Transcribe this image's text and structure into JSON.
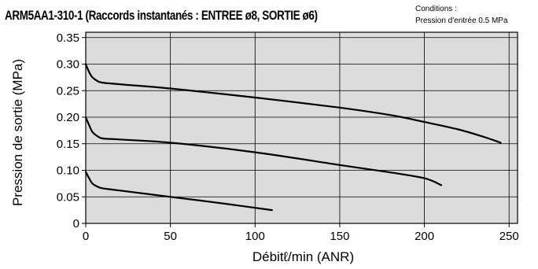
{
  "header": {
    "title": "ARM5AA1-310-1 (Raccords instantanés : ENTREE ø8, SORTIE ø6)",
    "conditions_label": "Conditions :",
    "conditions_value": "Pression d'entrée  0.5 MPa"
  },
  "chart_data": {
    "type": "line",
    "title": "ARM5AA1-310-1 (Raccords instantanés : ENTREE ø8, SORTIE ø6)",
    "xlabel": "Débitℓ/min (ANR)",
    "ylabel": "Pression de sortie (MPa)",
    "xlim": [
      0,
      255
    ],
    "ylim": [
      0,
      0.36
    ],
    "xticks": [
      0,
      50,
      100,
      150,
      200,
      250
    ],
    "yticks": [
      0,
      0.05,
      0.1,
      0.15,
      0.2,
      0.25,
      0.3,
      0.35
    ],
    "ytick_labels": [
      "0",
      "0.05",
      "0.10",
      "0.15",
      "0.20",
      "0.25",
      "0.30",
      "0.35"
    ],
    "grid": true,
    "background": "#dcdcdc",
    "line_color": "#000000",
    "series": [
      {
        "x": [
          0,
          2,
          4,
          7,
          10,
          20,
          50,
          100,
          150,
          180,
          200,
          220,
          235,
          245
        ],
        "y": [
          0.3,
          0.285,
          0.275,
          0.268,
          0.265,
          0.262,
          0.254,
          0.237,
          0.218,
          0.204,
          0.191,
          0.177,
          0.163,
          0.152
        ]
      },
      {
        "x": [
          0,
          2,
          4,
          7,
          10,
          20,
          50,
          100,
          150,
          180,
          200,
          210
        ],
        "y": [
          0.2,
          0.185,
          0.172,
          0.164,
          0.16,
          0.158,
          0.152,
          0.134,
          0.11,
          0.096,
          0.085,
          0.072
        ]
      },
      {
        "x": [
          0,
          2,
          4,
          7,
          10,
          20,
          50,
          80,
          110
        ],
        "y": [
          0.097,
          0.085,
          0.075,
          0.069,
          0.066,
          0.062,
          0.05,
          0.038,
          0.025
        ]
      }
    ]
  }
}
